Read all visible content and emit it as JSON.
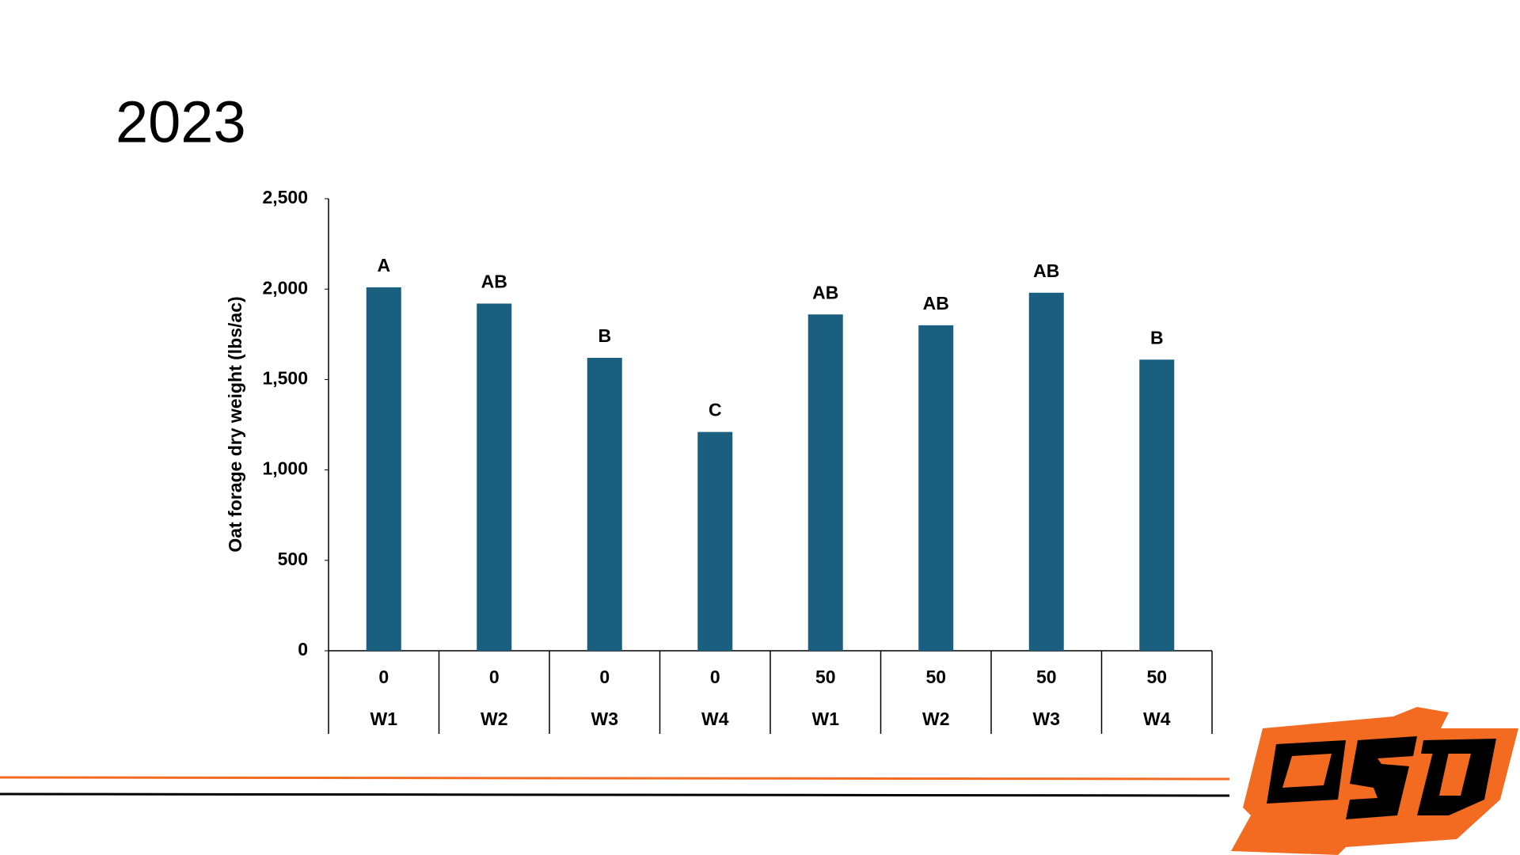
{
  "title": "2023",
  "chart_data": {
    "type": "bar",
    "y_label": "Oat forage dry weight (lbs/ac)",
    "categories": [
      "W1",
      "W2",
      "W3",
      "W4",
      "W1",
      "W2",
      "W3",
      "W4"
    ],
    "category_groups": [
      "0",
      "0",
      "0",
      "0",
      "50",
      "50",
      "50",
      "50"
    ],
    "values": [
      2010,
      1920,
      1620,
      1210,
      1860,
      1800,
      1980,
      1610
    ],
    "letters": [
      "A",
      "AB",
      "B",
      "C",
      "AB",
      "AB",
      "AB",
      "B"
    ],
    "color": "#1a5f80",
    "ylim": [
      0,
      2500
    ],
    "yticks": [
      0,
      500,
      {
        "value": 1000,
        "label": "1,000"
      },
      {
        "value": 1500,
        "label": "1,500"
      },
      {
        "value": 2000,
        "label": "2,000"
      },
      {
        "value": 2500,
        "label": "2,500"
      }
    ],
    "grid": false
  }
}
